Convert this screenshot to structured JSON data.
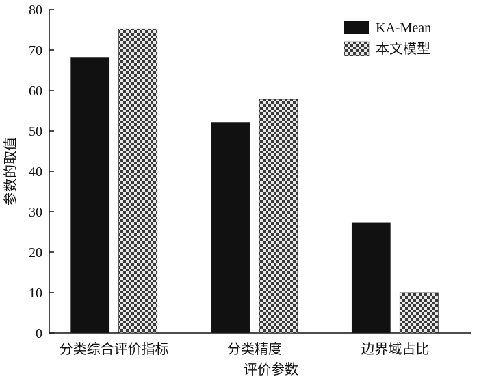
{
  "chart_data": {
    "type": "bar",
    "title": "",
    "ylabel": "参数的取值",
    "xlabel": "评价参数",
    "categories": [
      "分类综合评价指标",
      "分类精度",
      "边界域占比"
    ],
    "series": [
      {
        "name": "KA-Mean",
        "values": [
          68.2,
          52.1,
          27.3
        ],
        "pattern": "solid",
        "color": "#111111"
      },
      {
        "name": "本文模型",
        "values": [
          75.2,
          57.8,
          10.0
        ],
        "pattern": "checker",
        "color": "#555555"
      }
    ],
    "ylim": [
      0,
      80
    ],
    "yticks": [
      0,
      10,
      20,
      30,
      40,
      50,
      60,
      70,
      80
    ],
    "grid": false,
    "legend_position": "top-right"
  }
}
